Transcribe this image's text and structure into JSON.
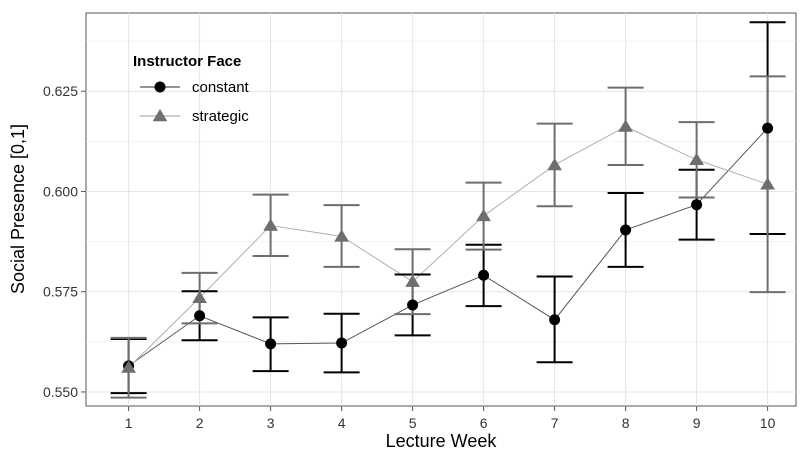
{
  "chart_data": {
    "type": "line",
    "xlabel": "Lecture Week",
    "ylabel": "Social Presence [0,1]",
    "x": [
      1,
      2,
      3,
      4,
      5,
      6,
      7,
      8,
      9,
      10
    ],
    "xlim": [
      0.4,
      10.4
    ],
    "ylim": [
      0.5465,
      0.6445
    ],
    "yticks": [
      0.55,
      0.575,
      0.6,
      0.625
    ],
    "ytick_labels": [
      "0.550",
      "0.575",
      "0.600",
      "0.625"
    ],
    "grid": true,
    "legend": {
      "title": "Instructor Face",
      "placement": "top-left"
    },
    "series": [
      {
        "name": "constant",
        "marker": "circle",
        "color": "#000000",
        "line_color": "#555555",
        "values": [
          0.5565,
          0.569,
          0.562,
          0.5622,
          0.5717,
          0.5791,
          0.568,
          0.5904,
          0.5967,
          0.6158
        ],
        "error_low": [
          0.5497,
          0.5629,
          0.5552,
          0.5549,
          0.5641,
          0.5714,
          0.5574,
          0.5812,
          0.588,
          0.5894
        ],
        "error_high": [
          0.5632,
          0.5751,
          0.5686,
          0.5695,
          0.5793,
          0.5867,
          0.5788,
          0.5996,
          0.6054,
          0.6422
        ]
      },
      {
        "name": "strategic",
        "marker": "triangle",
        "color": "#6e6e6e",
        "line_color": "#b0b0b0",
        "values": [
          0.5561,
          0.5735,
          0.5915,
          0.5888,
          0.5775,
          0.5939,
          0.6066,
          0.6162,
          0.6079,
          0.6018
        ],
        "error_low": [
          0.5486,
          0.5671,
          0.5839,
          0.5812,
          0.5694,
          0.5855,
          0.5963,
          0.6066,
          0.5985,
          0.5749
        ],
        "error_high": [
          0.5635,
          0.5797,
          0.5992,
          0.5966,
          0.5856,
          0.6022,
          0.6169,
          0.6259,
          0.6173,
          0.6287
        ]
      }
    ]
  }
}
